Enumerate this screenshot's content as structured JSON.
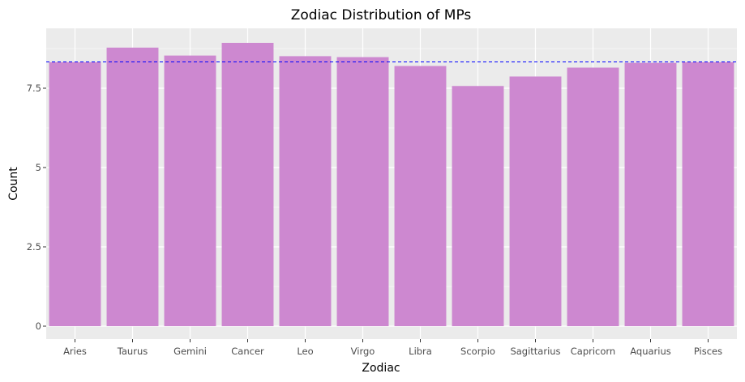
{
  "chart_data": {
    "type": "bar",
    "title": "Zodiac Distribution of MPs",
    "xlabel": "Zodiac",
    "ylabel": "Count",
    "categories": [
      "Aries",
      "Taurus",
      "Gemini",
      "Cancer",
      "Leo",
      "Virgo",
      "Libra",
      "Scorpio",
      "Sagittarius",
      "Capricorn",
      "Aquarius",
      "Pisces"
    ],
    "values": [
      8.32,
      8.78,
      8.53,
      8.93,
      8.51,
      8.48,
      8.2,
      7.57,
      7.87,
      8.15,
      8.3,
      8.32
    ],
    "ylim": [
      0,
      9.4
    ],
    "yticks": [
      0,
      2.5,
      5,
      7.5
    ],
    "ytick_labels": [
      "0",
      "2.5",
      "5",
      "7.5"
    ],
    "reference_line": {
      "y": 8.33,
      "style": "dashed",
      "color": "#0000ff"
    },
    "bar_color": "#cd88d0",
    "panel_background": "#ebebeb",
    "grid": true,
    "grid_color": "#ffffff",
    "legend": "none"
  }
}
